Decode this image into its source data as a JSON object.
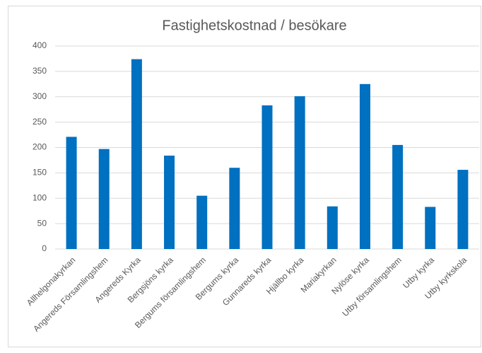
{
  "chart_data": {
    "type": "bar",
    "title": "Fastighetskostnad / besökare",
    "categories": [
      "Allhelgonakyrkan",
      "Angereds Församlingshem",
      "Angereds Kyrka",
      "Bergsjöns kyrka",
      "Bergums församlingshem",
      "Bergums kyrka",
      "Gunnareds kyrka",
      "Hjällbo kyrka",
      "Mariakyrkan",
      "Nylöse kyrka",
      "Utby församlingshem",
      "Utby kyrka",
      "Utby kyrkskola"
    ],
    "values": [
      221,
      197,
      374,
      184,
      105,
      160,
      283,
      301,
      84,
      325,
      205,
      83,
      156
    ],
    "color": "#0070c0",
    "ylim": [
      0,
      400
    ],
    "yticks": [
      0,
      50,
      100,
      150,
      200,
      250,
      300,
      350,
      400
    ],
    "grid": true
  }
}
